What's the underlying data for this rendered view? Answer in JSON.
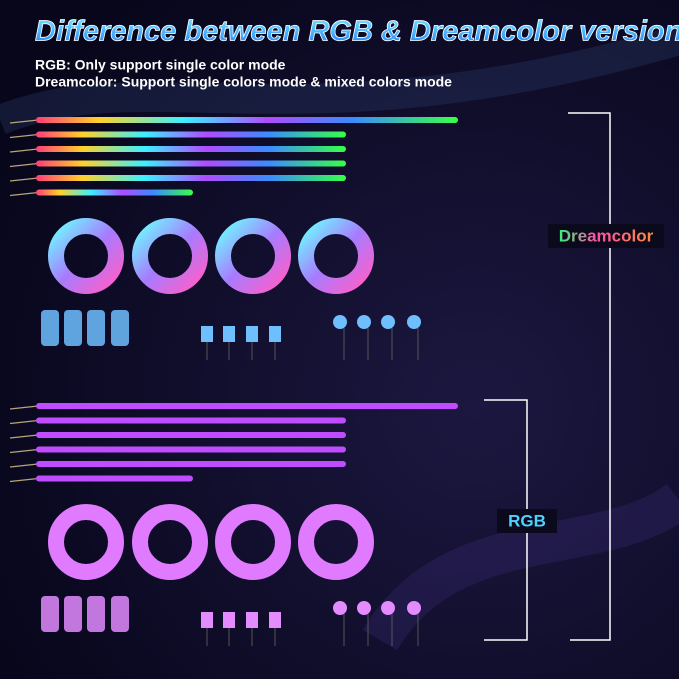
{
  "header": {
    "title": "Difference between RGB & Dreamcolor version",
    "lines": [
      "RGB: Only support single color mode",
      "Dreamcolor: Support single colors mode & mixed colors mode"
    ]
  },
  "groups": [
    {
      "label": "Dreamcolor"
    },
    {
      "label": "RGB"
    }
  ]
}
